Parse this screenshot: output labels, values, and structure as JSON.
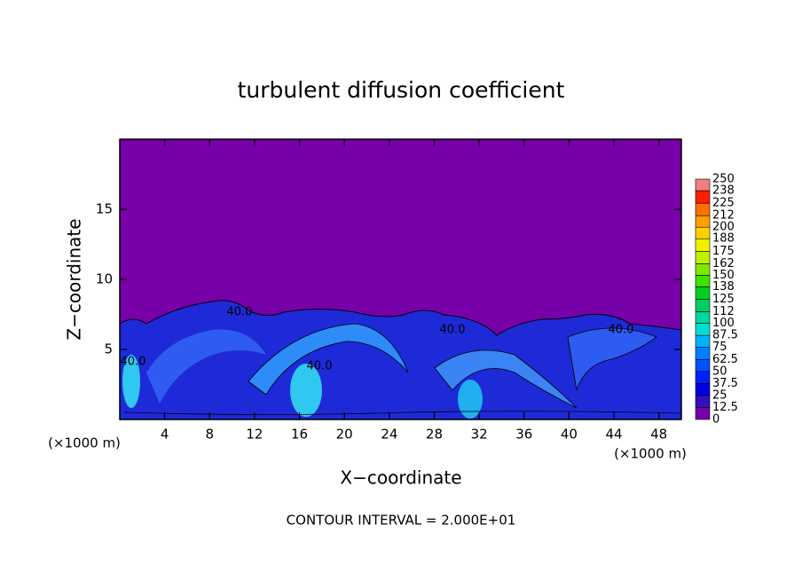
{
  "chart_data": {
    "type": "contour",
    "title": "turbulent diffusion coefficient",
    "xlabel": "X−coordinate",
    "ylabel": "Z−coordinate",
    "unit_label": "(×1000 m)",
    "xlim": [
      0,
      50
    ],
    "xticks": [
      4,
      8,
      12,
      16,
      20,
      24,
      28,
      32,
      36,
      40,
      44,
      48
    ],
    "ylim": [
      0,
      20
    ],
    "yticks": [
      5,
      10,
      15
    ],
    "annotation": "CONTOUR INTERVAL = 2.000E+01",
    "contour_labels": [
      "40.0",
      "40.0",
      "40.0",
      "40.0",
      "40.0"
    ],
    "colorbar": {
      "levels": [
        0,
        12.5,
        25,
        37.5,
        50,
        62.5,
        75,
        87.5,
        100,
        112,
        125,
        138,
        150,
        162,
        175,
        188,
        200,
        212,
        225,
        238,
        250
      ],
      "colors": [
        "#7800a8",
        "#3010c0",
        "#0000dd",
        "#0020ff",
        "#0050ff",
        "#0080ff",
        "#00b0ff",
        "#00e0d0",
        "#00d8a0",
        "#00d060",
        "#00d020",
        "#40e000",
        "#80e800",
        "#c0f000",
        "#f0f000",
        "#ffd000",
        "#ffa000",
        "#ff7000",
        "#ff2000",
        "#f08080"
      ]
    }
  }
}
